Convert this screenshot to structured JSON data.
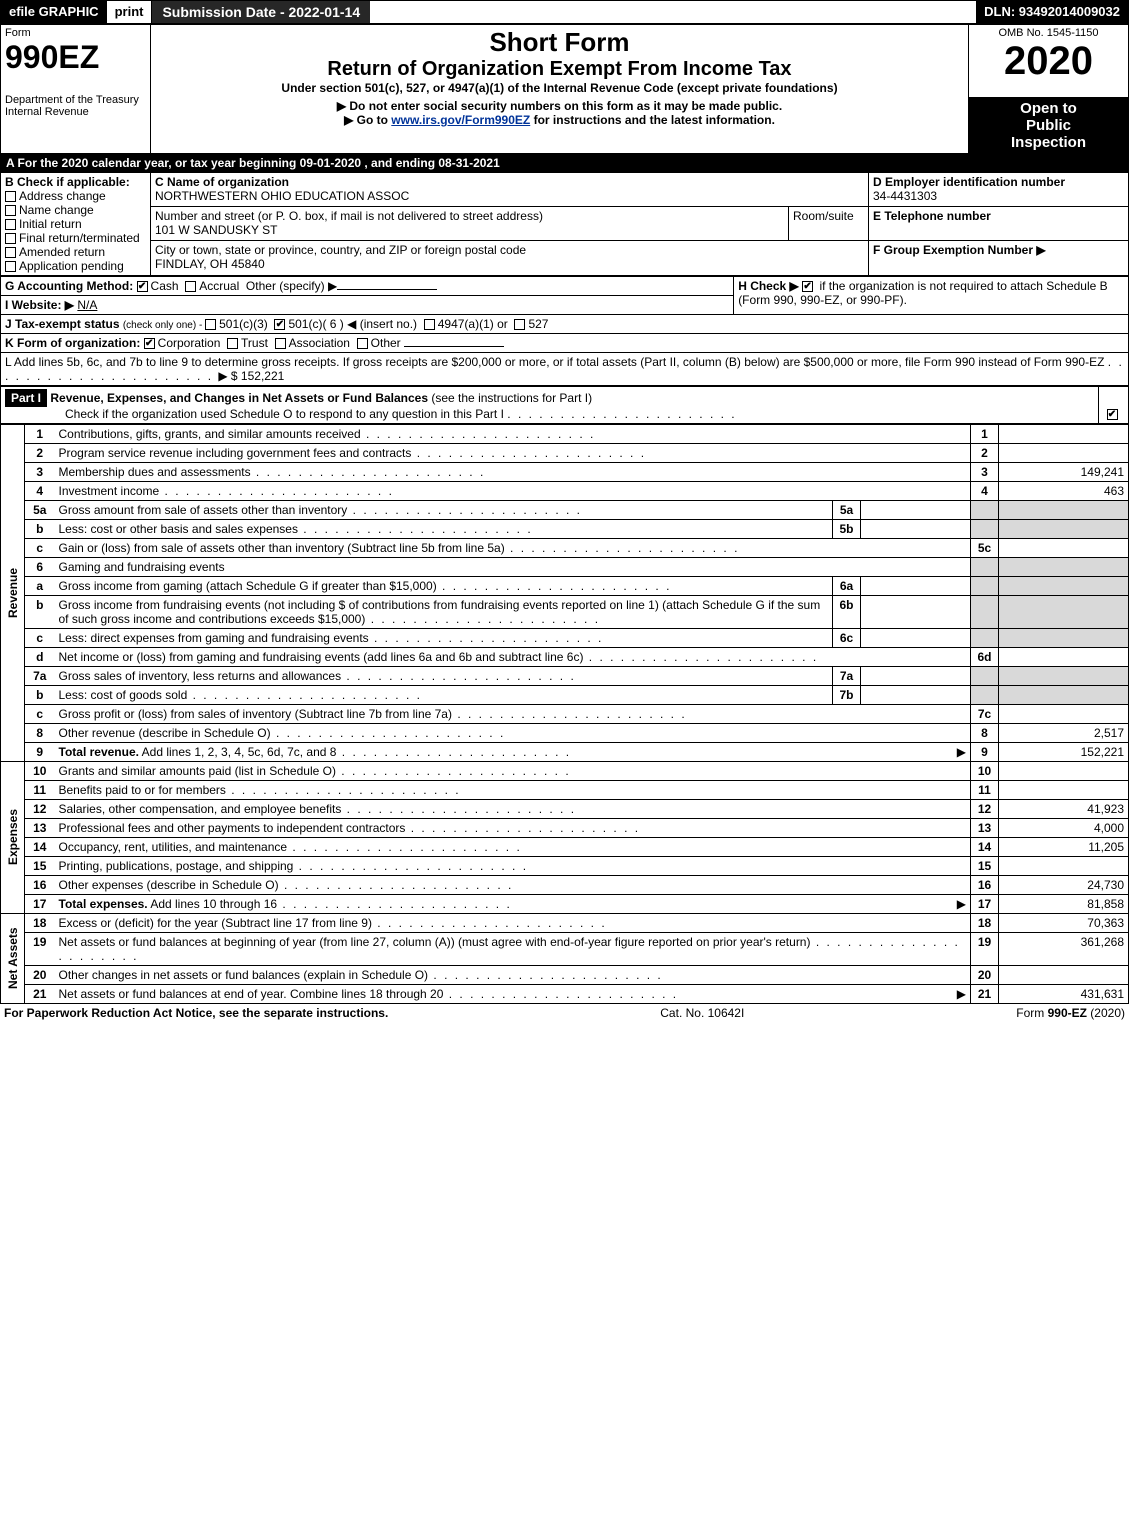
{
  "topbar": {
    "efile": "efile GRAPHIC",
    "print": "print",
    "subdate_label": "Submission Date - 2022-01-14",
    "dln": "DLN: 93492014009032"
  },
  "header": {
    "form_word": "Form",
    "form_no": "990EZ",
    "dept": "Department of the Treasury",
    "irs": "Internal Revenue",
    "short_form": "Short Form",
    "title": "Return of Organization Exempt From Income Tax",
    "subtitle1": "Under section 501(c), 527, or 4947(a)(1) of the Internal Revenue Code (except private foundations)",
    "note1": "▶ Do not enter social security numbers on this form as it may be made public.",
    "note2_pre": "▶ Go to ",
    "note2_link": "www.irs.gov/Form990EZ",
    "note2_post": " for instructions and the latest information.",
    "omb": "OMB No. 1545-1150",
    "year": "2020",
    "open1": "Open to",
    "open2": "Public",
    "open3": "Inspection"
  },
  "periodA": "A For the 2020 calendar year, or tax year beginning 09-01-2020 , and ending 08-31-2021",
  "sectionB": {
    "label": "B  Check if applicable:",
    "opts": [
      "Address change",
      "Name change",
      "Initial return",
      "Final return/terminated",
      "Amended return",
      "Application pending"
    ]
  },
  "sectionC": {
    "name_label": "C Name of organization",
    "name": "NORTHWESTERN OHIO EDUCATION ASSOC",
    "addr_label": "Number and street (or P. O. box, if mail is not delivered to street address)",
    "addr": "101 W SANDUSKY ST",
    "room_label": "Room/suite",
    "city_label": "City or town, state or province, country, and ZIP or foreign postal code",
    "city": "FINDLAY, OH  45840"
  },
  "sectionD": {
    "label": "D Employer identification number",
    "ein": "34-4431303"
  },
  "sectionE": {
    "label": "E Telephone number",
    "val": ""
  },
  "sectionF": {
    "label": "F Group Exemption Number  ▶",
    "val": ""
  },
  "lineG": {
    "label": "G Accounting Method:",
    "cash": "Cash",
    "accrual": "Accrual",
    "other": "Other (specify) ▶"
  },
  "lineH": {
    "label": "H  Check ▶",
    "text": " if the organization is not required to attach Schedule B (Form 990, 990-EZ, or 990-PF)."
  },
  "lineI": {
    "label": "I Website: ▶",
    "val": "N/A"
  },
  "lineJ": {
    "label": "J Tax-exempt status ",
    "sub": "(check only one) - ",
    "opts": [
      "501(c)(3)",
      "501(c)( 6 ) ◀ (insert no.)",
      "4947(a)(1) or",
      "527"
    ],
    "checked_index": 1
  },
  "lineK": {
    "label": "K Form of organization:",
    "opts": [
      "Corporation",
      "Trust",
      "Association",
      "Other"
    ],
    "checked_index": 0
  },
  "lineL": {
    "text": "L Add lines 5b, 6c, and 7b to line 9 to determine gross receipts. If gross receipts are $200,000 or more, or if total assets (Part II, column (B) below) are $500,000 or more, file Form 990 instead of Form 990-EZ",
    "amount": "▶ $ 152,221"
  },
  "part1": {
    "tag": "Part I",
    "title": "Revenue, Expenses, and Changes in Net Assets or Fund Balances",
    "title_post": " (see the instructions for Part I)",
    "check_line": "Check if the organization used Schedule O to respond to any question in this Part I",
    "check_state": true,
    "sidebars": {
      "rev": "Revenue",
      "exp": "Expenses",
      "na": "Net Assets"
    },
    "rows": [
      {
        "n": "1",
        "desc": "Contributions, gifts, grants, and similar amounts received",
        "ln": "1",
        "val": ""
      },
      {
        "n": "2",
        "desc": "Program service revenue including government fees and contracts",
        "ln": "2",
        "val": ""
      },
      {
        "n": "3",
        "desc": "Membership dues and assessments",
        "ln": "3",
        "val": "149,241"
      },
      {
        "n": "4",
        "desc": "Investment income",
        "ln": "4",
        "val": "463"
      },
      {
        "n": "5a",
        "desc": "Gross amount from sale of assets other than inventory",
        "sub": "5a",
        "subval": ""
      },
      {
        "n": "b",
        "desc": "Less: cost or other basis and sales expenses",
        "sub": "5b",
        "subval": ""
      },
      {
        "n": "c",
        "desc": "Gain or (loss) from sale of assets other than inventory (Subtract line 5b from line 5a)",
        "ln": "5c",
        "val": ""
      },
      {
        "n": "6",
        "desc": "Gaming and fundraising events",
        "blank": true
      },
      {
        "n": "a",
        "desc": "Gross income from gaming (attach Schedule G if greater than $15,000)",
        "sub": "6a",
        "subval": ""
      },
      {
        "n": "b",
        "desc": "Gross income from fundraising events (not including $                of contributions from fundraising events reported on line 1) (attach Schedule G if the sum of such gross income and contributions exceeds $15,000)",
        "sub": "6b",
        "subval": ""
      },
      {
        "n": "c",
        "desc": "Less: direct expenses from gaming and fundraising events",
        "sub": "6c",
        "subval": ""
      },
      {
        "n": "d",
        "desc": "Net income or (loss) from gaming and fundraising events (add lines 6a and 6b and subtract line 6c)",
        "ln": "6d",
        "val": ""
      },
      {
        "n": "7a",
        "desc": "Gross sales of inventory, less returns and allowances",
        "sub": "7a",
        "subval": ""
      },
      {
        "n": "b",
        "desc": "Less: cost of goods sold",
        "sub": "7b",
        "subval": ""
      },
      {
        "n": "c",
        "desc": "Gross profit or (loss) from sales of inventory (Subtract line 7b from line 7a)",
        "ln": "7c",
        "val": ""
      },
      {
        "n": "8",
        "desc": "Other revenue (describe in Schedule O)",
        "ln": "8",
        "val": "2,517"
      },
      {
        "n": "9",
        "desc": "Total revenue. Add lines 1, 2, 3, 4, 5c, 6d, 7c, and 8",
        "ln": "9",
        "val": "152,221",
        "bold": true,
        "arrow": true
      }
    ],
    "exp_rows": [
      {
        "n": "10",
        "desc": "Grants and similar amounts paid (list in Schedule O)",
        "ln": "10",
        "val": ""
      },
      {
        "n": "11",
        "desc": "Benefits paid to or for members",
        "ln": "11",
        "val": ""
      },
      {
        "n": "12",
        "desc": "Salaries, other compensation, and employee benefits",
        "ln": "12",
        "val": "41,923"
      },
      {
        "n": "13",
        "desc": "Professional fees and other payments to independent contractors",
        "ln": "13",
        "val": "4,000"
      },
      {
        "n": "14",
        "desc": "Occupancy, rent, utilities, and maintenance",
        "ln": "14",
        "val": "11,205"
      },
      {
        "n": "15",
        "desc": "Printing, publications, postage, and shipping",
        "ln": "15",
        "val": ""
      },
      {
        "n": "16",
        "desc": "Other expenses (describe in Schedule O)",
        "ln": "16",
        "val": "24,730"
      },
      {
        "n": "17",
        "desc": "Total expenses. Add lines 10 through 16",
        "ln": "17",
        "val": "81,858",
        "bold": true,
        "arrow": true
      }
    ],
    "na_rows": [
      {
        "n": "18",
        "desc": "Excess or (deficit) for the year (Subtract line 17 from line 9)",
        "ln": "18",
        "val": "70,363"
      },
      {
        "n": "19",
        "desc": "Net assets or fund balances at beginning of year (from line 27, column (A)) (must agree with end-of-year figure reported on prior year's return)",
        "ln": "19",
        "val": "361,268"
      },
      {
        "n": "20",
        "desc": "Other changes in net assets or fund balances (explain in Schedule O)",
        "ln": "20",
        "val": ""
      },
      {
        "n": "21",
        "desc": "Net assets or fund balances at end of year. Combine lines 18 through 20",
        "ln": "21",
        "val": "431,631",
        "arrow": true
      }
    ]
  },
  "footer": {
    "left": "For Paperwork Reduction Act Notice, see the separate instructions.",
    "mid": "Cat. No. 10642I",
    "right_pre": "Form ",
    "right_bold": "990-EZ",
    "right_post": " (2020)"
  }
}
